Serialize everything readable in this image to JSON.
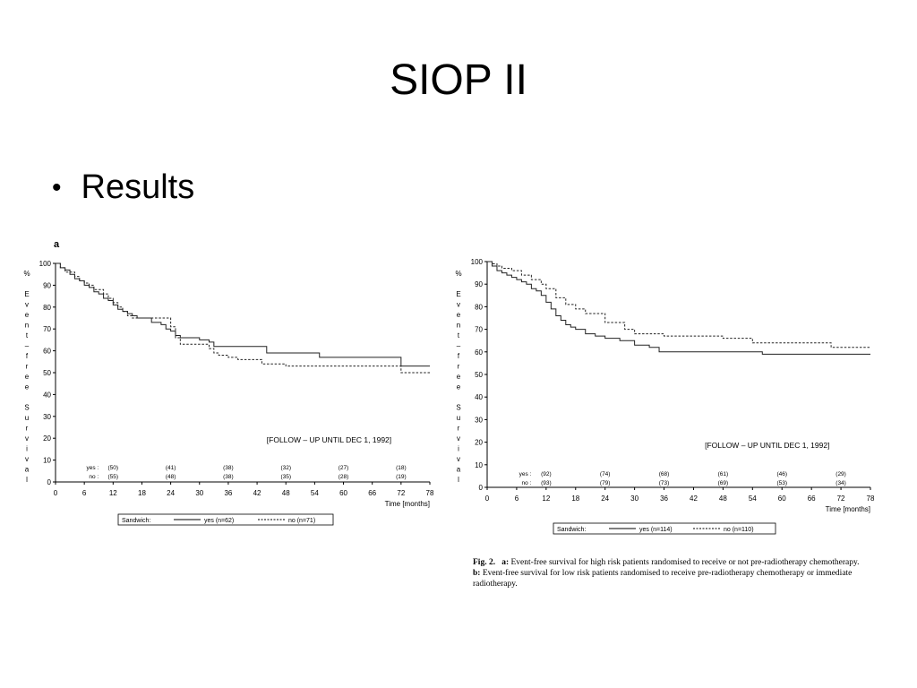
{
  "slide": {
    "title": "SIOP II",
    "bullet": "Results"
  },
  "panels": [
    {
      "panel_label": "a",
      "note": "[FOLLOW – UP UNTIL DEC 1, 1992]",
      "y_axis_label": [
        "%",
        "",
        "E",
        "v",
        "e",
        "n",
        "t",
        "–",
        "f",
        "r",
        "e",
        "e",
        "",
        "S",
        "u",
        "r",
        "v",
        "i",
        "v",
        "a",
        "l"
      ],
      "x_title": "Time [months]",
      "at_risk": {
        "yes_label": "yes :",
        "no_label": "no :",
        "times": [
          12,
          24,
          36,
          48,
          60,
          72
        ],
        "yes": [
          "(50)",
          "(41)",
          "(38)",
          "(32)",
          "(27)",
          "(18)"
        ],
        "no": [
          "(55)",
          "(48)",
          "(38)",
          "(35)",
          "(28)",
          "(19)"
        ]
      },
      "legend": {
        "title": "Sandwich:",
        "yes": "yes (n=62)",
        "no": "no (n=71)"
      }
    },
    {
      "panel_label": "",
      "note": "[FOLLOW – UP UNTIL DEC 1, 1992]",
      "y_axis_label": [
        "%",
        "",
        "E",
        "v",
        "e",
        "n",
        "t",
        "–",
        "f",
        "r",
        "e",
        "e",
        "",
        "S",
        "u",
        "r",
        "v",
        "i",
        "v",
        "a",
        "l"
      ],
      "x_title": "Time [months]",
      "at_risk": {
        "yes_label": "yes :",
        "no_label": "no :",
        "times": [
          12,
          24,
          36,
          48,
          60,
          72
        ],
        "yes": [
          "(92)",
          "(74)",
          "(68)",
          "(61)",
          "(46)",
          "(29)"
        ],
        "no": [
          "(93)",
          "(79)",
          "(73)",
          "(69)",
          "(53)",
          "(34)"
        ]
      },
      "legend": {
        "title": "Sandwich:",
        "yes": "yes (n=114)",
        "no": "no (n=110)"
      }
    }
  ],
  "caption": {
    "fig": "Fig. 2.",
    "a_label": "a:",
    "a_text": " Event-free survival for high risk patients randomised to receive or not pre-radiotherapy chemotherapy.",
    "b_label": "b:",
    "b_text": " Event-free survival for low risk patients randomised to receive pre-radiotherapy chemotherapy or immediate radiotherapy."
  },
  "chart_data": [
    {
      "type": "line",
      "step": true,
      "xlabel": "Time [months]",
      "ylabel": "% Event-free Survival",
      "xlim": [
        0,
        78
      ],
      "ylim": [
        0,
        100
      ],
      "xticks": [
        0,
        6,
        12,
        18,
        24,
        30,
        36,
        42,
        48,
        54,
        60,
        66,
        72,
        78
      ],
      "yticks": [
        0,
        10,
        20,
        30,
        40,
        50,
        60,
        70,
        80,
        90,
        100
      ],
      "grid": false,
      "legend_position": "bottom",
      "series": [
        {
          "name": "yes (n=62)",
          "style": "solid",
          "x": [
            0,
            1,
            2,
            3,
            4,
            5,
            6,
            7,
            8,
            9,
            10,
            11,
            12,
            13,
            14,
            15,
            16,
            17,
            18,
            20,
            22,
            23,
            24,
            25,
            26,
            30,
            32,
            33,
            43,
            44,
            55,
            72,
            78
          ],
          "y": [
            100,
            98,
            97,
            95,
            93,
            92,
            90,
            89,
            87,
            86,
            84,
            83,
            81,
            79,
            78,
            77,
            76,
            75,
            75,
            73,
            72,
            70,
            69,
            67,
            66,
            65,
            64,
            62,
            62,
            59,
            57,
            53,
            53
          ]
        },
        {
          "name": "no (n=71)",
          "style": "dashed",
          "x": [
            0,
            1,
            2,
            4,
            5,
            6,
            7,
            8,
            10,
            11,
            12,
            13,
            14,
            15,
            16,
            24,
            25,
            26,
            32,
            33,
            34,
            36,
            38,
            43,
            48,
            72,
            78
          ],
          "y": [
            100,
            98,
            96,
            94,
            92,
            91,
            90,
            88,
            86,
            84,
            82,
            80,
            78,
            76,
            75,
            71,
            66,
            63,
            61,
            59,
            58,
            57,
            56,
            54,
            53,
            50,
            50
          ]
        }
      ]
    },
    {
      "type": "line",
      "step": true,
      "xlabel": "Time [months]",
      "ylabel": "% Event-free Survival",
      "xlim": [
        0,
        78
      ],
      "ylim": [
        0,
        100
      ],
      "xticks": [
        0,
        6,
        12,
        18,
        24,
        30,
        36,
        42,
        48,
        54,
        60,
        66,
        72,
        78
      ],
      "yticks": [
        0,
        10,
        20,
        30,
        40,
        50,
        60,
        70,
        80,
        90,
        100
      ],
      "grid": false,
      "legend_position": "bottom",
      "series": [
        {
          "name": "yes (n=114)",
          "style": "solid",
          "x": [
            0,
            1,
            2,
            3,
            4,
            5,
            6,
            7,
            8,
            9,
            10,
            11,
            12,
            13,
            14,
            15,
            16,
            17,
            18,
            20,
            22,
            24,
            27,
            30,
            33,
            35,
            56,
            78
          ],
          "y": [
            100,
            98,
            96,
            95,
            94,
            93,
            92,
            91,
            90,
            88,
            87,
            85,
            82,
            79,
            76,
            74,
            72,
            71,
            70,
            68,
            67,
            66,
            65,
            63,
            62,
            60,
            59,
            59
          ]
        },
        {
          "name": "no (n=110)",
          "style": "dashed",
          "x": [
            0,
            1,
            2,
            3,
            5,
            7,
            9,
            11,
            12,
            14,
            16,
            18,
            20,
            24,
            28,
            30,
            36,
            48,
            54,
            66,
            70,
            78
          ],
          "y": [
            100,
            99,
            98,
            97,
            96,
            94,
            92,
            90,
            88,
            84,
            81,
            79,
            77,
            73,
            70,
            68,
            67,
            66,
            64,
            64,
            62,
            62
          ]
        }
      ]
    }
  ]
}
